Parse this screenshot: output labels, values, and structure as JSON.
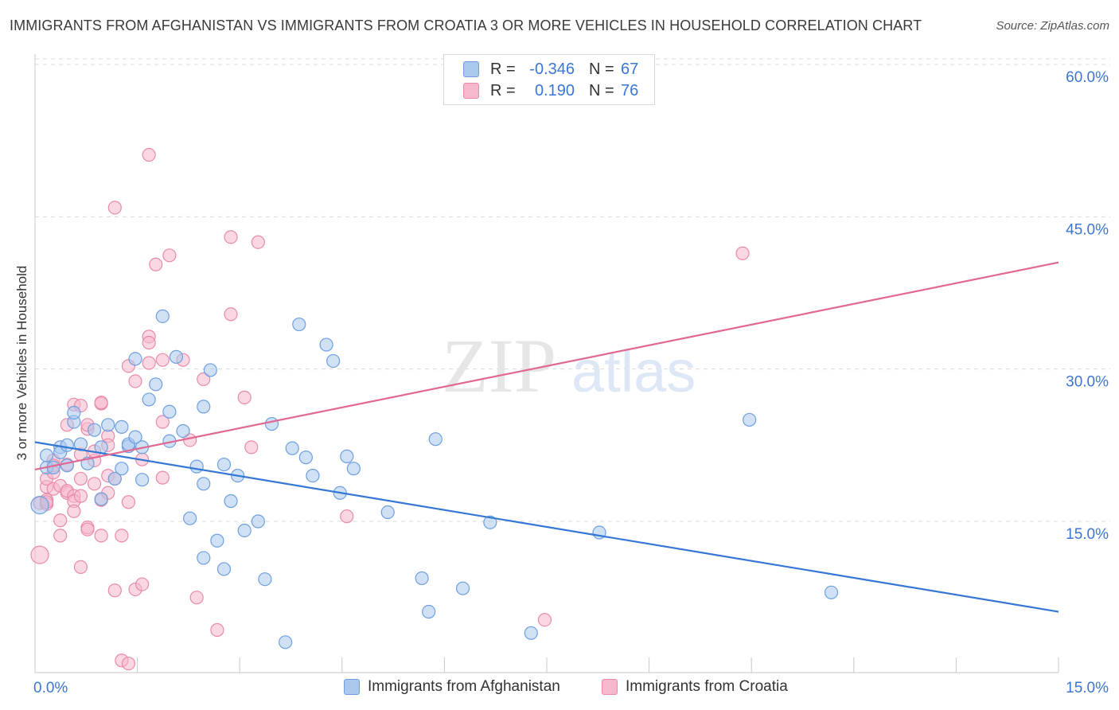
{
  "header": {
    "title": "IMMIGRANTS FROM AFGHANISTAN VS IMMIGRANTS FROM CROATIA 3 OR MORE VEHICLES IN HOUSEHOLD CORRELATION CHART",
    "source": "Source: ZipAtlas.com"
  },
  "legend": {
    "series": [
      {
        "r_label": "R =",
        "r_value": "-0.346",
        "n_label": "N =",
        "n_value": "67"
      },
      {
        "r_label": "R =",
        "r_value": "0.190",
        "n_label": "N =",
        "n_value": "76"
      }
    ]
  },
  "bottom_legend": {
    "afghanistan": "Immigrants from Afghanistan",
    "croatia": "Immigrants from Croatia"
  },
  "watermark": {
    "zip": "ZIP",
    "atlas": "atlas"
  },
  "colors": {
    "afghanistan_fill": "#aac8ee",
    "afghanistan_stroke": "#6d9fe0",
    "afghanistan_line": "#3577d4",
    "croatia_fill": "#f6b8cc",
    "croatia_stroke": "#e98aa8",
    "croatia_line": "#e06892",
    "tick_label": "#3b76d4",
    "grid": "#d8d8d8"
  },
  "chart_data": {
    "type": "scatter",
    "title": "IMMIGRANTS FROM AFGHANISTAN VS IMMIGRANTS FROM CROATIA 3 OR MORE VEHICLES IN HOUSEHOLD CORRELATION CHART",
    "xlabel": "",
    "ylabel": "3 or more Vehicles in Household",
    "xlim": [
      0,
      15
    ],
    "ylim": [
      0,
      62
    ],
    "x_tick_labels": [
      "0.0%",
      "15.0%"
    ],
    "y_ticks": [
      15,
      30,
      45,
      60
    ],
    "y_tick_labels": [
      "15.0%",
      "30.0%",
      "45.0%",
      "60.0%"
    ],
    "grid": true,
    "legend_position": "top-center",
    "series": [
      {
        "name": "Immigrants from Afghanistan",
        "r": -0.346,
        "n": 67,
        "trend": {
          "x": [
            0,
            15
          ],
          "y": [
            22.8,
            6.1
          ]
        },
        "points": [
          [
            0.0,
            16.6
          ],
          [
            0.1,
            20.3
          ],
          [
            0.1,
            21.5
          ],
          [
            0.2,
            20.3
          ],
          [
            0.3,
            22.3
          ],
          [
            0.3,
            21.8
          ],
          [
            0.4,
            22.5
          ],
          [
            0.4,
            20.5
          ],
          [
            0.5,
            24.8
          ],
          [
            0.5,
            25.7
          ],
          [
            0.6,
            22.6
          ],
          [
            0.7,
            20.7
          ],
          [
            0.8,
            24.0
          ],
          [
            0.9,
            22.3
          ],
          [
            0.9,
            17.2
          ],
          [
            1.0,
            24.5
          ],
          [
            1.1,
            19.2
          ],
          [
            1.2,
            20.2
          ],
          [
            1.2,
            24.3
          ],
          [
            1.3,
            22.4
          ],
          [
            1.3,
            22.6
          ],
          [
            1.4,
            23.3
          ],
          [
            1.4,
            31.0
          ],
          [
            1.5,
            19.1
          ],
          [
            1.5,
            22.3
          ],
          [
            1.6,
            27.0
          ],
          [
            1.7,
            28.5
          ],
          [
            1.8,
            35.2
          ],
          [
            1.9,
            25.8
          ],
          [
            1.9,
            22.9
          ],
          [
            2.0,
            31.2
          ],
          [
            2.1,
            23.9
          ],
          [
            2.2,
            15.3
          ],
          [
            2.3,
            20.4
          ],
          [
            2.4,
            11.4
          ],
          [
            2.4,
            26.3
          ],
          [
            2.4,
            18.7
          ],
          [
            2.5,
            29.9
          ],
          [
            2.6,
            13.1
          ],
          [
            2.7,
            10.3
          ],
          [
            2.7,
            20.6
          ],
          [
            2.8,
            17.0
          ],
          [
            2.9,
            19.5
          ],
          [
            3.0,
            14.1
          ],
          [
            3.2,
            15.0
          ],
          [
            3.3,
            9.3
          ],
          [
            3.4,
            24.6
          ],
          [
            3.6,
            3.1
          ],
          [
            3.7,
            22.2
          ],
          [
            3.8,
            34.4
          ],
          [
            3.9,
            21.3
          ],
          [
            4.0,
            19.5
          ],
          [
            4.2,
            32.4
          ],
          [
            4.3,
            30.8
          ],
          [
            4.4,
            17.8
          ],
          [
            4.5,
            21.4
          ],
          [
            4.6,
            20.2
          ],
          [
            5.1,
            15.9
          ],
          [
            5.6,
            9.4
          ],
          [
            5.7,
            6.1
          ],
          [
            5.8,
            23.1
          ],
          [
            6.2,
            8.4
          ],
          [
            6.6,
            14.9
          ],
          [
            7.2,
            4.0
          ],
          [
            8.2,
            13.9
          ],
          [
            10.4,
            25.0
          ],
          [
            11.6,
            8.0
          ]
        ]
      },
      {
        "name": "Immigrants from Croatia",
        "r": 0.19,
        "n": 76,
        "trend": {
          "x": [
            0,
            15
          ],
          "y": [
            20.1,
            40.5
          ]
        },
        "points": [
          [
            0.0,
            11.7
          ],
          [
            0.0,
            16.8
          ],
          [
            0.1,
            17.1
          ],
          [
            0.1,
            16.7
          ],
          [
            0.1,
            18.4
          ],
          [
            0.1,
            19.2
          ],
          [
            0.1,
            16.9
          ],
          [
            0.2,
            18.2
          ],
          [
            0.2,
            21.0
          ],
          [
            0.2,
            20.5
          ],
          [
            0.2,
            19.8
          ],
          [
            0.3,
            18.5
          ],
          [
            0.3,
            15.1
          ],
          [
            0.3,
            13.6
          ],
          [
            0.4,
            17.8
          ],
          [
            0.4,
            18.0
          ],
          [
            0.4,
            20.6
          ],
          [
            0.4,
            24.5
          ],
          [
            0.5,
            26.5
          ],
          [
            0.5,
            17.5
          ],
          [
            0.5,
            17.0
          ],
          [
            0.5,
            16.0
          ],
          [
            0.6,
            19.2
          ],
          [
            0.6,
            17.5
          ],
          [
            0.6,
            10.5
          ],
          [
            0.6,
            26.4
          ],
          [
            0.6,
            21.6
          ],
          [
            0.7,
            24.1
          ],
          [
            0.7,
            24.5
          ],
          [
            0.7,
            14.4
          ],
          [
            0.7,
            14.2
          ],
          [
            0.8,
            21.0
          ],
          [
            0.8,
            18.7
          ],
          [
            0.8,
            21.9
          ],
          [
            0.9,
            26.6
          ],
          [
            0.9,
            26.7
          ],
          [
            0.9,
            13.6
          ],
          [
            0.9,
            17.1
          ],
          [
            1.0,
            23.4
          ],
          [
            1.0,
            19.5
          ],
          [
            1.0,
            17.8
          ],
          [
            1.0,
            22.5
          ],
          [
            1.1,
            19.2
          ],
          [
            1.1,
            8.2
          ],
          [
            1.1,
            45.9
          ],
          [
            1.2,
            13.6
          ],
          [
            1.2,
            1.3
          ],
          [
            1.3,
            30.3
          ],
          [
            1.3,
            16.9
          ],
          [
            1.3,
            1.0
          ],
          [
            1.4,
            28.8
          ],
          [
            1.4,
            8.3
          ],
          [
            1.5,
            8.8
          ],
          [
            1.5,
            21.1
          ],
          [
            1.6,
            51.1
          ],
          [
            1.6,
            30.6
          ],
          [
            1.6,
            33.2
          ],
          [
            1.6,
            32.6
          ],
          [
            1.7,
            40.3
          ],
          [
            1.8,
            19.3
          ],
          [
            1.8,
            24.8
          ],
          [
            1.8,
            30.9
          ],
          [
            1.9,
            41.2
          ],
          [
            2.1,
            30.9
          ],
          [
            2.2,
            23.0
          ],
          [
            2.3,
            7.5
          ],
          [
            2.4,
            29.0
          ],
          [
            2.6,
            4.3
          ],
          [
            2.8,
            43.0
          ],
          [
            2.8,
            35.4
          ],
          [
            3.0,
            27.2
          ],
          [
            3.1,
            22.3
          ],
          [
            3.2,
            42.5
          ],
          [
            4.5,
            15.5
          ],
          [
            7.4,
            5.3
          ],
          [
            10.3,
            41.4
          ]
        ]
      }
    ]
  }
}
